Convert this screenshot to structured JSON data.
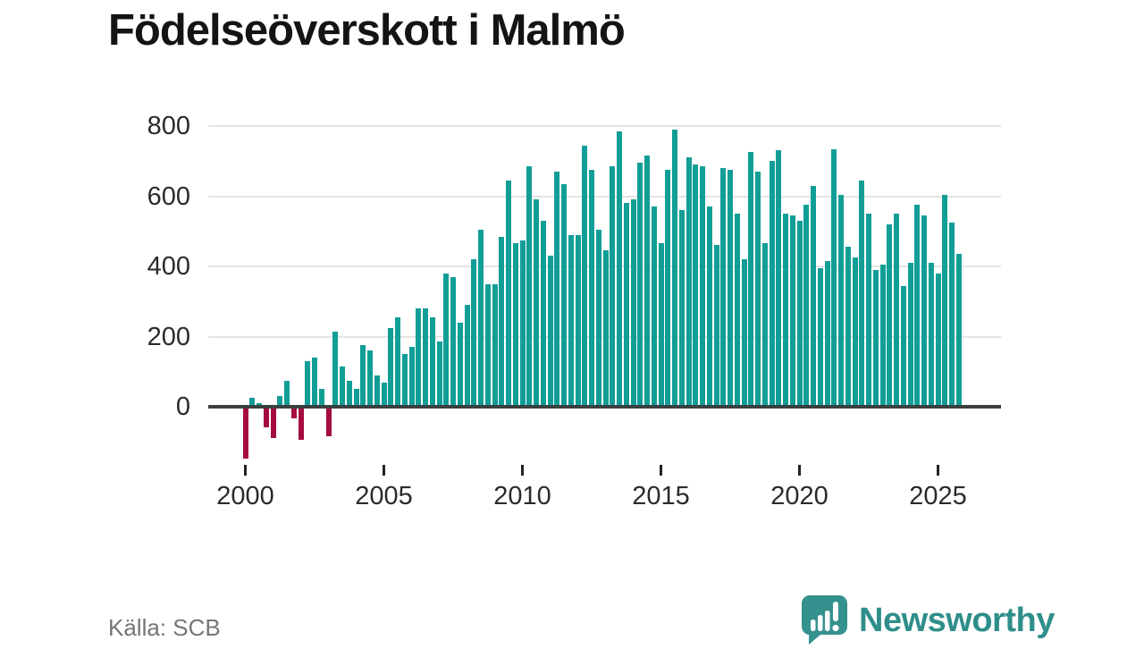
{
  "header": {
    "title": "Födelseöverskott i Malmö"
  },
  "footer": {
    "source": "Källa: SCB",
    "brand_name": "Newsworthy"
  },
  "chart_data": {
    "type": "bar",
    "title": "Födelseöverskott i Malmö",
    "source": "Källa: SCB",
    "frequency": "quarterly",
    "start_year": 2000,
    "periods_per_year": 4,
    "values": [
      -145,
      25,
      10,
      -55,
      -85,
      30,
      75,
      -30,
      -90,
      130,
      140,
      50,
      -80,
      215,
      115,
      75,
      50,
      175,
      160,
      90,
      70,
      225,
      255,
      150,
      170,
      280,
      280,
      255,
      185,
      380,
      370,
      240,
      290,
      420,
      505,
      350,
      350,
      485,
      645,
      465,
      475,
      685,
      590,
      530,
      430,
      670,
      635,
      490,
      490,
      745,
      675,
      505,
      445,
      685,
      785,
      580,
      590,
      695,
      715,
      570,
      465,
      675,
      790,
      560,
      710,
      690,
      685,
      570,
      460,
      680,
      675,
      550,
      420,
      725,
      670,
      465,
      700,
      730,
      550,
      545,
      530,
      575,
      630,
      395,
      415,
      735,
      605,
      455,
      425,
      645,
      550,
      390,
      405,
      520,
      550,
      345,
      410,
      575,
      545,
      410,
      380,
      605,
      525,
      435
    ],
    "x_axis": {
      "ticks": [
        2000,
        2005,
        2010,
        2015,
        2020,
        2025
      ]
    },
    "y_axis": {
      "ticks": [
        0,
        200,
        400,
        600,
        800
      ],
      "range_shown": [
        -160,
        800
      ],
      "gridlines": true
    },
    "legend": "none",
    "colors": {
      "positive_bar": "#119e97",
      "negative_bar": "#a50b42",
      "axis_line": "#3a4040",
      "gridline": "#e4e4e4",
      "brand_teal": "#2f8e8a"
    }
  }
}
